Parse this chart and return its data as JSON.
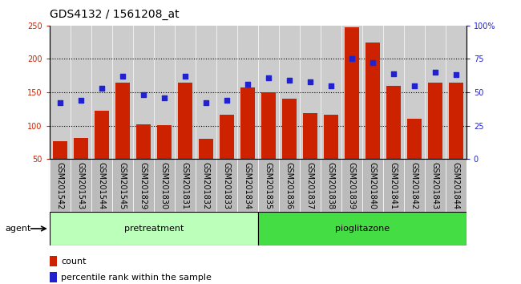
{
  "title": "GDS4132 / 1561208_at",
  "samples": [
    "GSM201542",
    "GSM201543",
    "GSM201544",
    "GSM201545",
    "GSM201829",
    "GSM201830",
    "GSM201831",
    "GSM201832",
    "GSM201833",
    "GSM201834",
    "GSM201835",
    "GSM201836",
    "GSM201837",
    "GSM201838",
    "GSM201839",
    "GSM201840",
    "GSM201841",
    "GSM201842",
    "GSM201843",
    "GSM201844"
  ],
  "counts": [
    77,
    82,
    122,
    164,
    102,
    101,
    165,
    80,
    117,
    157,
    150,
    140,
    119,
    116,
    247,
    225,
    160,
    110,
    165,
    165
  ],
  "percentile_ranks": [
    42,
    44,
    53,
    62,
    48,
    46,
    62,
    42,
    44,
    56,
    61,
    59,
    58,
    55,
    75,
    72,
    64,
    55,
    65,
    63
  ],
  "n_pretreatment": 10,
  "n_pioglitazone": 10,
  "ylim_left": [
    50,
    250
  ],
  "ylim_right": [
    0,
    100
  ],
  "yticks_left": [
    50,
    100,
    150,
    200,
    250
  ],
  "yticks_right": [
    0,
    25,
    50,
    75,
    100
  ],
  "bar_color": "#cc2200",
  "dot_color": "#2222cc",
  "plot_bg_color": "#cccccc",
  "cell_bg_color": "#bbbbbb",
  "pretreatment_color": "#bbffbb",
  "pioglitazone_color": "#44dd44",
  "title_fontsize": 10,
  "tick_fontsize": 7,
  "group_fontsize": 8,
  "legend_fontsize": 8,
  "agent_fontsize": 8
}
